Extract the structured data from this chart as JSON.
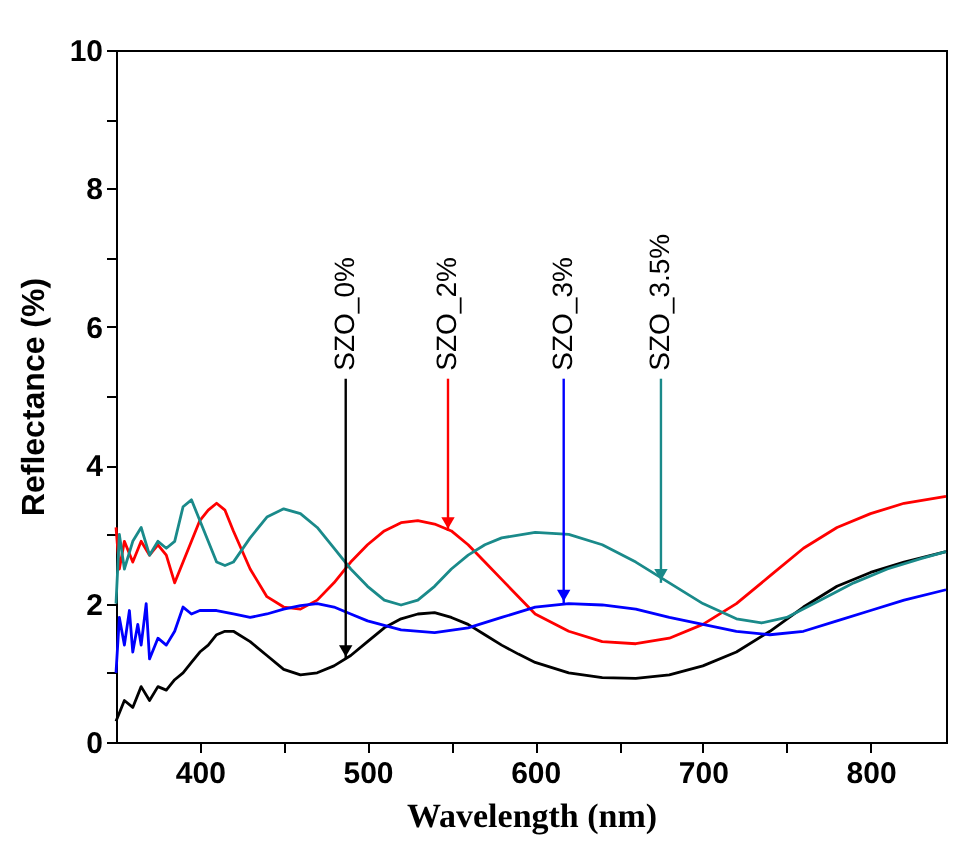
{
  "chart_data": {
    "type": "line",
    "xlabel": "Wavelength (nm)",
    "ylabel": "Reflectance (%)",
    "xlim": [
      350,
      845
    ],
    "ylim": [
      0,
      10
    ],
    "xticks": [
      400,
      {
        "value": 450,
        "label": null
      },
      500,
      {
        "value": 550,
        "label": null
      },
      600,
      {
        "value": 650,
        "label": null
      },
      700,
      {
        "value": 750,
        "label": null
      },
      800
    ],
    "yticks": [
      0,
      {
        "value": 1,
        "label": null
      },
      2,
      {
        "value": 3,
        "label": null
      },
      4,
      {
        "value": 5,
        "label": null
      },
      6,
      {
        "value": 7,
        "label": null
      },
      8,
      {
        "value": 9,
        "label": null
      },
      10
    ],
    "grid": false,
    "legend": false,
    "annotations": [
      {
        "text": "SZO_0%",
        "x": 487,
        "y": 1.2
      },
      {
        "text": "SZO_2%",
        "x": 548,
        "y": 3.05
      },
      {
        "text": "SZO_3%",
        "x": 617,
        "y": 2.0
      },
      {
        "text": "SZO_3.5%",
        "x": 675,
        "y": 2.3
      }
    ],
    "series": [
      {
        "color": "#000000",
        "x": [
          350,
          355,
          360,
          365,
          370,
          375,
          380,
          385,
          390,
          395,
          400,
          405,
          410,
          415,
          420,
          430,
          440,
          450,
          460,
          470,
          480,
          490,
          500,
          510,
          520,
          530,
          540,
          550,
          560,
          570,
          580,
          590,
          600,
          620,
          640,
          660,
          680,
          700,
          720,
          740,
          760,
          780,
          800,
          820,
          845
        ],
        "values": [
          0.3,
          0.6,
          0.5,
          0.8,
          0.6,
          0.8,
          0.75,
          0.9,
          1.0,
          1.15,
          1.3,
          1.4,
          1.55,
          1.6,
          1.6,
          1.45,
          1.25,
          1.05,
          0.97,
          1.0,
          1.1,
          1.25,
          1.45,
          1.65,
          1.78,
          1.85,
          1.87,
          1.8,
          1.7,
          1.55,
          1.4,
          1.27,
          1.15,
          1.0,
          0.93,
          0.92,
          0.97,
          1.1,
          1.3,
          1.6,
          1.95,
          2.25,
          2.45,
          2.6,
          2.75
        ]
      },
      {
        "color": "#ff0000",
        "x": [
          350,
          352,
          355,
          360,
          365,
          370,
          375,
          380,
          385,
          390,
          395,
          400,
          405,
          410,
          415,
          420,
          430,
          440,
          450,
          460,
          470,
          480,
          490,
          500,
          510,
          520,
          530,
          540,
          550,
          560,
          570,
          580,
          590,
          600,
          620,
          640,
          660,
          680,
          700,
          720,
          740,
          760,
          780,
          800,
          820,
          845
        ],
        "values": [
          3.1,
          2.5,
          2.9,
          2.6,
          2.9,
          2.7,
          2.85,
          2.7,
          2.3,
          2.6,
          2.9,
          3.2,
          3.35,
          3.45,
          3.35,
          3.05,
          2.5,
          2.1,
          1.95,
          1.92,
          2.05,
          2.3,
          2.6,
          2.85,
          3.05,
          3.17,
          3.2,
          3.15,
          3.05,
          2.85,
          2.6,
          2.35,
          2.1,
          1.85,
          1.6,
          1.45,
          1.42,
          1.5,
          1.7,
          2.0,
          2.4,
          2.8,
          3.1,
          3.3,
          3.45,
          3.55
        ]
      },
      {
        "color": "#0000ff",
        "x": [
          350,
          352,
          355,
          358,
          360,
          363,
          365,
          368,
          370,
          375,
          380,
          385,
          390,
          395,
          400,
          410,
          420,
          430,
          440,
          450,
          460,
          470,
          480,
          490,
          500,
          520,
          540,
          560,
          580,
          600,
          620,
          640,
          660,
          680,
          700,
          720,
          740,
          760,
          780,
          800,
          820,
          845
        ],
        "values": [
          1.0,
          1.8,
          1.4,
          1.9,
          1.3,
          1.7,
          1.4,
          2.0,
          1.2,
          1.5,
          1.4,
          1.6,
          1.95,
          1.85,
          1.9,
          1.9,
          1.85,
          1.8,
          1.85,
          1.92,
          1.97,
          2.0,
          1.95,
          1.85,
          1.75,
          1.62,
          1.58,
          1.65,
          1.8,
          1.95,
          2.0,
          1.98,
          1.92,
          1.8,
          1.7,
          1.6,
          1.55,
          1.6,
          1.75,
          1.9,
          2.05,
          2.2
        ]
      },
      {
        "color": "#1a8a8a",
        "x": [
          350,
          352,
          355,
          360,
          365,
          370,
          375,
          380,
          385,
          390,
          395,
          400,
          405,
          410,
          415,
          420,
          430,
          440,
          450,
          460,
          470,
          480,
          490,
          500,
          510,
          520,
          530,
          540,
          550,
          560,
          570,
          580,
          600,
          620,
          640,
          660,
          680,
          700,
          720,
          735,
          750,
          770,
          790,
          810,
          830,
          845
        ],
        "values": [
          2.0,
          3.0,
          2.5,
          2.9,
          3.1,
          2.7,
          2.9,
          2.8,
          2.9,
          3.4,
          3.5,
          3.2,
          2.9,
          2.6,
          2.55,
          2.6,
          2.95,
          3.25,
          3.37,
          3.3,
          3.1,
          2.8,
          2.5,
          2.25,
          2.05,
          1.98,
          2.05,
          2.25,
          2.5,
          2.7,
          2.85,
          2.95,
          3.03,
          3.0,
          2.85,
          2.6,
          2.3,
          2.0,
          1.78,
          1.72,
          1.8,
          2.05,
          2.3,
          2.5,
          2.65,
          2.75
        ]
      }
    ]
  }
}
